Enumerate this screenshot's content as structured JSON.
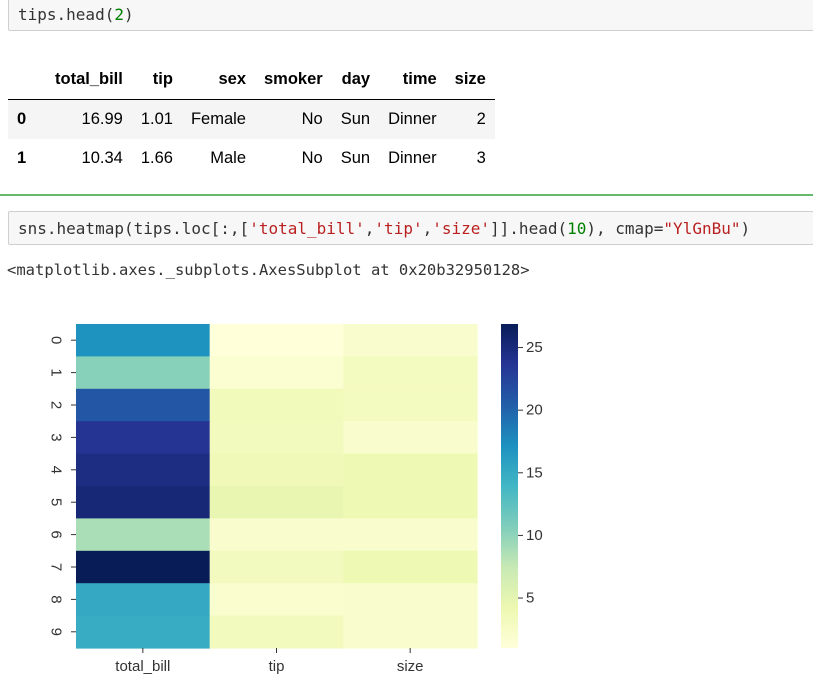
{
  "cell_top": {
    "tokens": [
      {
        "t": "tips.head(",
        "c": ""
      },
      {
        "t": "2",
        "c": "num"
      },
      {
        "t": ")",
        "c": ""
      }
    ]
  },
  "dataframe": {
    "columns": [
      "",
      "total_bill",
      "tip",
      "sex",
      "smoker",
      "day",
      "time",
      "size"
    ],
    "rows": [
      [
        "0",
        "16.99",
        "1.01",
        "Female",
        "No",
        "Sun",
        "Dinner",
        "2"
      ],
      [
        "1",
        "10.34",
        "1.66",
        "Male",
        "No",
        "Sun",
        "Dinner",
        "3"
      ]
    ]
  },
  "cell_heatmap": {
    "tokens": [
      {
        "t": "sns.heatmap(tips.loc[:,[",
        "c": ""
      },
      {
        "t": "'total_bill'",
        "c": "str"
      },
      {
        "t": ",",
        "c": ""
      },
      {
        "t": "'tip'",
        "c": "str"
      },
      {
        "t": ",",
        "c": ""
      },
      {
        "t": "'size'",
        "c": "str"
      },
      {
        "t": "]].head(",
        "c": ""
      },
      {
        "t": "10",
        "c": "num"
      },
      {
        "t": "), cmap=",
        "c": ""
      },
      {
        "t": "\"YlGnBu\"",
        "c": "str"
      },
      {
        "t": ")",
        "c": ""
      }
    ]
  },
  "output_repr": "<matplotlib.axes._subplots.AxesSubplot at 0x20b32950128>",
  "colors": {
    "code_string": "#ba2121",
    "code_number": "#008000",
    "selected_cell_border": "#66bb6a"
  },
  "chart_data": {
    "type": "heatmap",
    "colormap": "YlGnBu",
    "x_categories": [
      "total_bill",
      "tip",
      "size"
    ],
    "y_categories": [
      "0",
      "1",
      "2",
      "3",
      "4",
      "5",
      "6",
      "7",
      "8",
      "9"
    ],
    "values": [
      [
        16.99,
        1.01,
        2
      ],
      [
        10.34,
        1.66,
        3
      ],
      [
        21.01,
        3.5,
        3
      ],
      [
        23.68,
        3.31,
        2
      ],
      [
        24.59,
        3.61,
        4
      ],
      [
        25.29,
        4.71,
        4
      ],
      [
        8.77,
        2.0,
        2
      ],
      [
        26.88,
        3.12,
        4
      ],
      [
        15.04,
        1.96,
        2
      ],
      [
        14.78,
        3.23,
        2
      ]
    ],
    "vmin": 1.01,
    "vmax": 26.88,
    "colorbar_ticks": [
      "5",
      "10",
      "15",
      "20",
      "25"
    ],
    "colorbar_tick_values": [
      5,
      10,
      15,
      20,
      25
    ]
  }
}
